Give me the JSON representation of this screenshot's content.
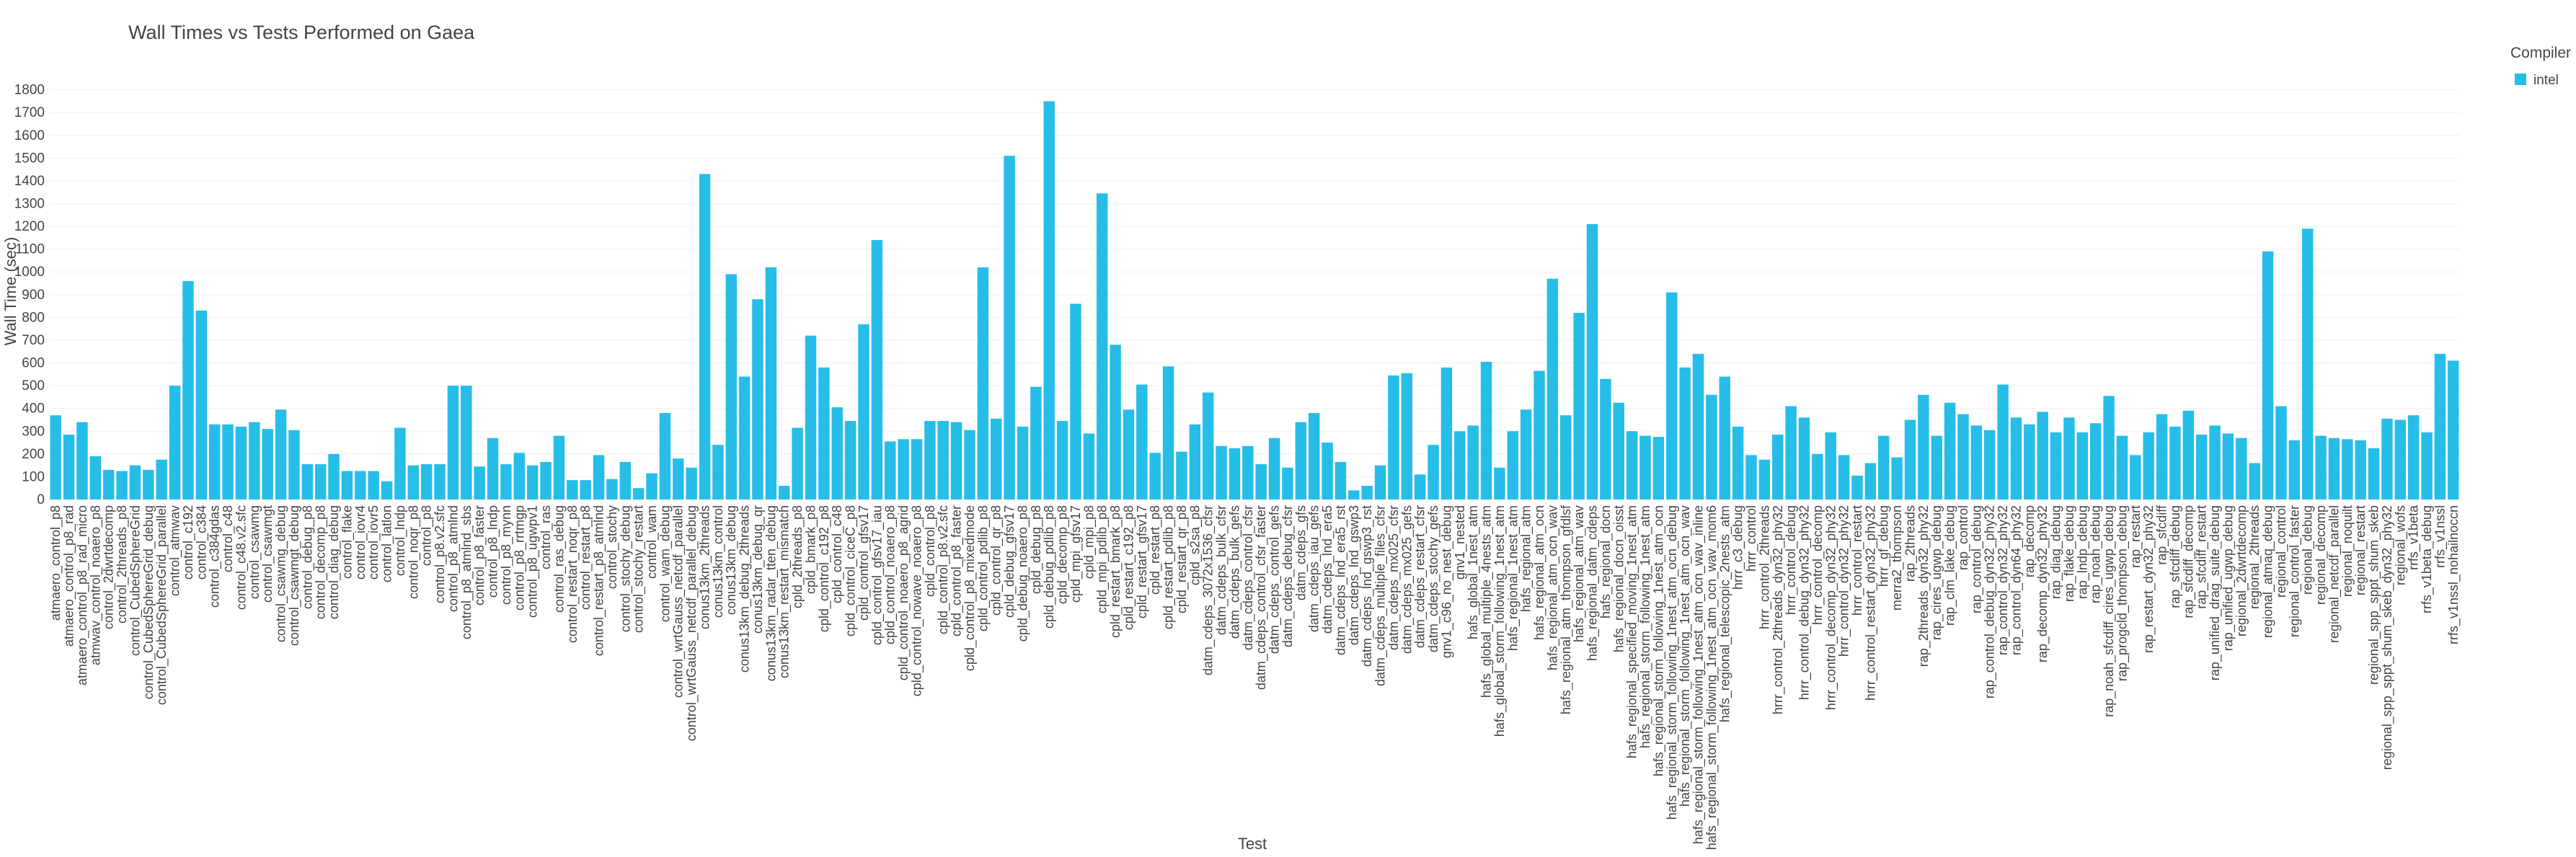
{
  "chart_data": {
    "type": "bar",
    "title": "Wall Times vs Tests Performed on Gaea",
    "x_label": "Test",
    "y_label": "Wall Time (sec)",
    "legend_title": "Compiler",
    "legend_position": "top-right",
    "grid": true,
    "series": [
      {
        "name": "intel",
        "color": "#26bde9",
        "values": [
          370,
          285,
          340,
          190,
          130,
          125,
          150,
          130,
          175,
          500,
          960,
          830,
          330,
          330,
          320,
          340,
          310,
          395,
          305,
          155,
          155,
          200,
          125,
          125,
          125,
          80,
          315,
          150,
          155,
          155,
          500,
          500,
          145,
          270,
          155,
          205,
          150,
          165,
          280,
          85,
          85,
          195,
          90,
          165,
          50,
          115,
          380,
          180,
          140,
          1430,
          240,
          990,
          540,
          880,
          1020,
          60,
          315,
          720,
          580,
          405,
          345,
          770,
          1140,
          255,
          265,
          265,
          345,
          345,
          340,
          305,
          1020,
          355,
          1510,
          320,
          495,
          1750,
          345,
          860,
          290,
          1345,
          680,
          395,
          505,
          205,
          585,
          210,
          330,
          470,
          235,
          225,
          235,
          155,
          270,
          140,
          340,
          380,
          250,
          165,
          40,
          60,
          150,
          545,
          555,
          110,
          240,
          580,
          300,
          325,
          605,
          140,
          300,
          395,
          565,
          970,
          370,
          820,
          1210,
          530,
          425,
          300,
          280,
          275,
          910,
          580,
          640,
          460,
          540,
          320,
          195,
          175,
          285,
          410,
          360,
          200,
          295,
          195,
          105,
          160,
          280,
          185,
          350,
          460,
          280,
          425,
          375,
          325,
          305,
          505,
          360,
          330,
          385,
          295,
          360,
          295,
          335,
          455,
          280,
          195,
          295,
          375,
          320,
          390,
          285,
          325,
          290,
          270,
          160,
          1090,
          410,
          260,
          1190,
          280,
          270,
          265,
          260,
          225,
          355,
          350,
          370,
          295,
          640,
          610
        ]
      }
    ],
    "categories": [
      "atmaero_control_p8",
      "atmaero_control_p8_rad",
      "atmaero_control_p8_rad_micro",
      "atmwav_control_noaero_p8",
      "control_2dwrtdecomp",
      "control_2threads_p8",
      "control_CubedSphereGrid",
      "control_CubedSphereGrid_debug",
      "control_CubedSphereGrid_parallel",
      "control_atmwav",
      "control_c192",
      "control_c384",
      "control_c384gdas",
      "control_c48",
      "control_c48.v2.sfc",
      "control_csawmg",
      "control_csawmgt",
      "control_csawmg_debug",
      "control_csawmgt_debug",
      "control_debug_p8",
      "control_decomp_p8",
      "control_diag_debug",
      "control_flake",
      "control_iovr4",
      "control_iovr5",
      "control_latlon",
      "control_lndp",
      "control_noqr_p8",
      "control_p8",
      "control_p8.v2.sfc",
      "control_p8_atmlnd",
      "control_p8_atmlnd_sbs",
      "control_p8_faster",
      "control_p8_lndp",
      "control_p8_mynn",
      "control_p8_rrtmgp",
      "control_p8_ugwpv1",
      "control_ras",
      "control_ras_debug",
      "control_restart_noqr_p8",
      "control_restart_p8",
      "control_restart_p8_atmlnd",
      "control_stochy",
      "control_stochy_debug",
      "control_stochy_restart",
      "control_wam",
      "control_wam_debug",
      "control_wrtGauss_netcdf_parallel",
      "control_wrtGauss_netcdf_parallel_debug",
      "conus13km_2threads",
      "conus13km_control",
      "conus13km_debug",
      "conus13km_debug_2threads",
      "conus13km_debug_qr",
      "conus13km_radar_tten_debug",
      "conus13km_restart_mismatch",
      "cpld_2threads_p8",
      "cpld_bmark_p8",
      "cpld_control_c192_p8",
      "cpld_control_c48",
      "cpld_control_ciceC_p8",
      "cpld_control_gfsv17",
      "cpld_control_gfsv17_iau",
      "cpld_control_noaero_p8",
      "cpld_control_noaero_p8_agrid",
      "cpld_control_nowave_noaero_p8",
      "cpld_control_p8",
      "cpld_control_p8.v2.sfc",
      "cpld_control_p8_faster",
      "cpld_control_p8_mixedmode",
      "cpld_control_pdlib_p8",
      "cpld_control_qr_p8",
      "cpld_debug_gfsv17",
      "cpld_debug_noaero_p8",
      "cpld_debug_p8",
      "cpld_debug_pdlib_p8",
      "cpld_decomp_p8",
      "cpld_mpi_gfsv17",
      "cpld_mpi_p8",
      "cpld_mpi_pdlib_p8",
      "cpld_restart_bmark_p8",
      "cpld_restart_c192_p8",
      "cpld_restart_gfsv17",
      "cpld_restart_p8",
      "cpld_restart_pdlib_p8",
      "cpld_restart_qr_p8",
      "cpld_s2sa_p8",
      "datm_cdeps_3072x1536_cfsr",
      "datm_cdeps_bulk_cfsr",
      "datm_cdeps_bulk_gefs",
      "datm_cdeps_control_cfsr",
      "datm_cdeps_control_cfsr_faster",
      "datm_cdeps_control_gefs",
      "datm_cdeps_debug_cfsr",
      "datm_cdeps_gfs",
      "datm_cdeps_iau_gefs",
      "datm_cdeps_lnd_era5",
      "datm_cdeps_lnd_era5_rst",
      "datm_cdeps_lnd_gswp3",
      "datm_cdeps_lnd_gswp3_rst",
      "datm_cdeps_multiple_files_cfsr",
      "datm_cdeps_mx025_cfsr",
      "datm_cdeps_mx025_gefs",
      "datm_cdeps_restart_cfsr",
      "datm_cdeps_stochy_gefs",
      "gnv1_c96_no_nest_debug",
      "gnv1_nested",
      "hafs_global_1nest_atm",
      "hafs_global_multiple_4nests_atm",
      "hafs_global_storm_following_1nest_atm",
      "hafs_regional_1nest_atm",
      "hafs_regional_atm",
      "hafs_regional_atm_ocn",
      "hafs_regional_atm_ocn_wav",
      "hafs_regional_atm_thompson_gfdlsf",
      "hafs_regional_atm_wav",
      "hafs_regional_datm_cdeps",
      "hafs_regional_docn",
      "hafs_regional_docn_oisst",
      "hafs_regional_specified_moving_1nest_atm",
      "hafs_regional_storm_following_1nest_atm",
      "hafs_regional_storm_following_1nest_atm_ocn",
      "hafs_regional_storm_following_1nest_atm_ocn_debug",
      "hafs_regional_storm_following_1nest_atm_ocn_wav",
      "hafs_regional_storm_following_1nest_atm_ocn_wav_inline",
      "hafs_regional_storm_following_1nest_atm_ocn_wav_mom6",
      "hafs_regional_telescopic_2nests_atm",
      "hrrr_c3_debug",
      "hrrr_control",
      "hrrr_control_2threads",
      "hrrr_control_2threads_dyn32_phy32",
      "hrrr_control_debug",
      "hrrr_control_debug_dyn32_phy32",
      "hrrr_control_decomp",
      "hrrr_control_decomp_dyn32_phy32",
      "hrrr_control_dyn32_phy32",
      "hrrr_control_restart",
      "hrrr_control_restart_dyn32_phy32",
      "hrrr_gf_debug",
      "merra2_thompson",
      "rap_2threads",
      "rap_2threads_dyn32_phy32",
      "rap_cires_ugwp_debug",
      "rap_clm_lake_debug",
      "rap_control",
      "rap_control_debug",
      "rap_control_debug_dyn32_phy32",
      "rap_control_dyn32_phy32",
      "rap_control_dyn64_phy32",
      "rap_decomp",
      "rap_decomp_dyn32_phy32",
      "rap_diag_debug",
      "rap_flake_debug",
      "rap_lndp_debug",
      "rap_noah_debug",
      "rap_noah_sfcdiff_cires_ugwp_debug",
      "rap_progcld_thompson_debug",
      "rap_restart",
      "rap_restart_dyn32_phy32",
      "rap_sfcdiff",
      "rap_sfcdiff_debug",
      "rap_sfcdiff_decomp",
      "rap_sfcdiff_restart",
      "rap_unified_drag_suite_debug",
      "rap_unified_ugwp_debug",
      "regional_2dwrtdecomp",
      "regional_2threads",
      "regional_atmaq_debug",
      "regional_control",
      "regional_control_faster",
      "regional_debug",
      "regional_decomp",
      "regional_netcdf_parallel",
      "regional_noquilt",
      "regional_restart",
      "regional_spp_sppt_shum_skeb",
      "regional_spp_sppt_shum_skeb_dyn32_phy32",
      "regional_wofs",
      "rrfs_v1beta",
      "rrfs_v1beta_debug",
      "rrfs_v1nssl",
      "rrfs_v1nssl_nohailnoccn"
    ],
    "ylim": [
      0,
      1840
    ],
    "yticks": [
      0,
      100,
      200,
      300,
      400,
      500,
      600,
      700,
      800,
      900,
      1000,
      1100,
      1200,
      1300,
      1400,
      1500,
      1600,
      1700,
      1800
    ]
  }
}
